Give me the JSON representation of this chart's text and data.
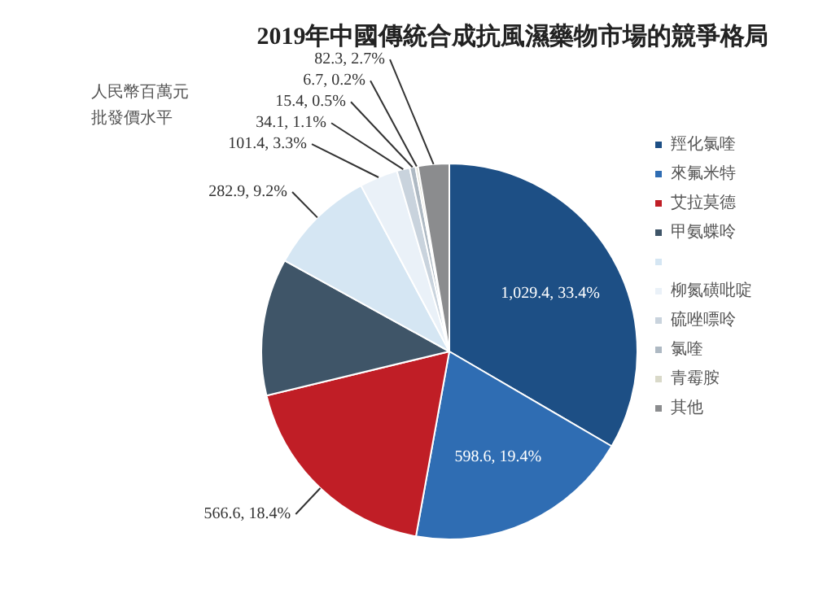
{
  "chart_data": {
    "type": "pie",
    "title": "2019年中國傳統合成抗風濕藥物市場的競爭格局",
    "annotations": [
      "人民幣百萬元",
      "批發價水平"
    ],
    "categories": [
      "羥化氯喹",
      "來氟米特",
      "艾拉莫德",
      "甲氨蝶呤",
      null,
      "柳氮磺吡啶",
      "硫唑嘌呤",
      "氯喹",
      "青霉胺",
      "其他"
    ],
    "values": [
      1029.4,
      598.6,
      566.6,
      363.5,
      282.9,
      101.4,
      34.1,
      15.4,
      6.7,
      82.3
    ],
    "value_labels": [
      "1,029.4, 33.4%",
      "598.6, 19.4%",
      "566.6, 18.4%",
      null,
      "282.9, 9.2%",
      "101.4, 3.3%",
      "34.1, 1.1%",
      "15.4, 0.5%",
      "6.7, 0.2%",
      "82.3, 2.7%"
    ],
    "colors": [
      "#1d4f85",
      "#2f6db3",
      "#c01e26",
      "#3f5568",
      "#d5e6f3",
      "#eaf1f8",
      "#c9d3dd",
      "#aeb9c3",
      "#d9d9c9",
      "#8b8c8e"
    ],
    "legend": "right"
  }
}
